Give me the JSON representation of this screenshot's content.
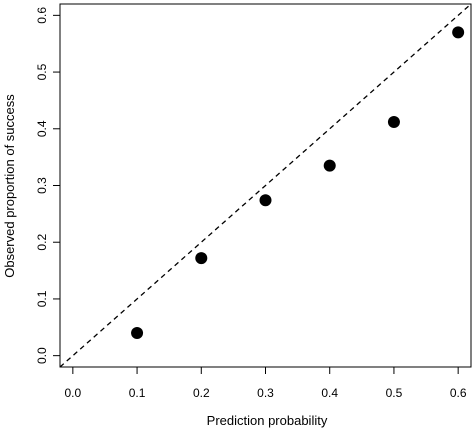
{
  "chart_data": {
    "type": "scatter",
    "title": "",
    "xlabel": "Prediction probability",
    "ylabel": "Observed proportion of success",
    "xlim": [
      -0.02,
      0.62
    ],
    "ylim": [
      -0.02,
      0.62
    ],
    "x_ticks": [
      "0.0",
      "0.1",
      "0.2",
      "0.3",
      "0.4",
      "0.5",
      "0.6"
    ],
    "y_ticks": [
      "0.0",
      "0.1",
      "0.2",
      "0.3",
      "0.4",
      "0.5",
      "0.6"
    ],
    "grid": false,
    "reference_line": {
      "type": "identity",
      "style": "dashed"
    },
    "series": [
      {
        "x": [
          0.1,
          0.2,
          0.3,
          0.4,
          0.5,
          0.6
        ],
        "y": [
          0.04,
          0.172,
          0.274,
          0.335,
          0.412,
          0.57
        ]
      }
    ],
    "marker_color": "#000000"
  }
}
